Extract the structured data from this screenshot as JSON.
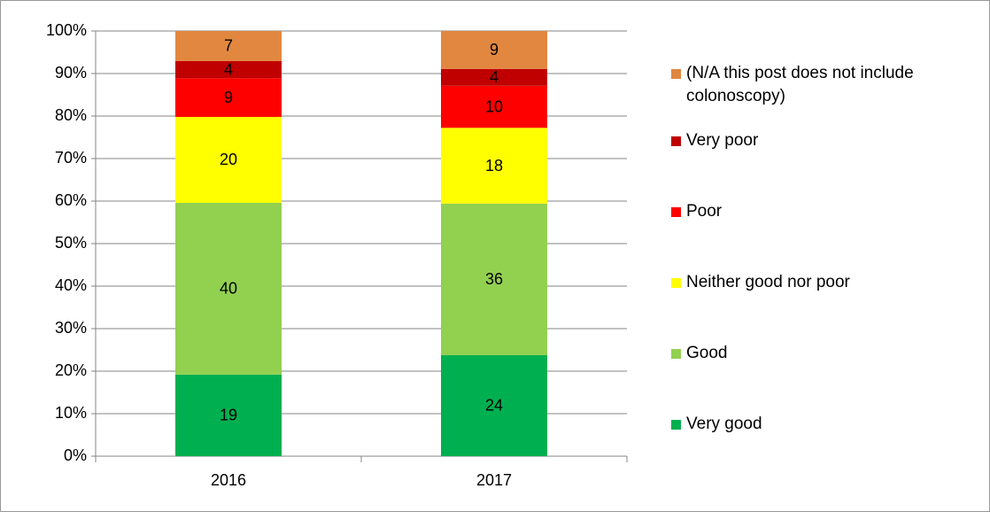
{
  "chart_data": {
    "type": "bar",
    "stacked": "percent",
    "categories": [
      "2016",
      "2017"
    ],
    "series": [
      {
        "name": "Very good",
        "color": "#00b050",
        "values": [
          19,
          24
        ]
      },
      {
        "name": "Good",
        "color": "#92d050",
        "values": [
          40,
          36
        ]
      },
      {
        "name": "Neither good nor poor",
        "color": "#ffff00",
        "values": [
          20,
          18
        ]
      },
      {
        "name": "Poor",
        "color": "#ff0000",
        "values": [
          9,
          10
        ]
      },
      {
        "name": "Very poor",
        "color": "#c00000",
        "values": [
          4,
          4
        ]
      },
      {
        "name": "(N/A this post does not include colonoscopy)",
        "color": "#e2873f",
        "values": [
          7,
          9
        ]
      }
    ],
    "ylim": [
      0,
      100
    ],
    "yticks": [
      {
        "value": 0,
        "label": "0%"
      },
      {
        "value": 10,
        "label": "10%"
      },
      {
        "value": 20,
        "label": "20%"
      },
      {
        "value": 30,
        "label": "30%"
      },
      {
        "value": 40,
        "label": "40%"
      },
      {
        "value": 50,
        "label": "50%"
      },
      {
        "value": 60,
        "label": "60%"
      },
      {
        "value": 70,
        "label": "70%"
      },
      {
        "value": 80,
        "label": "80%"
      },
      {
        "value": 90,
        "label": "90%"
      },
      {
        "value": 100,
        "label": "100%"
      }
    ],
    "grid": true,
    "legend": "right"
  }
}
